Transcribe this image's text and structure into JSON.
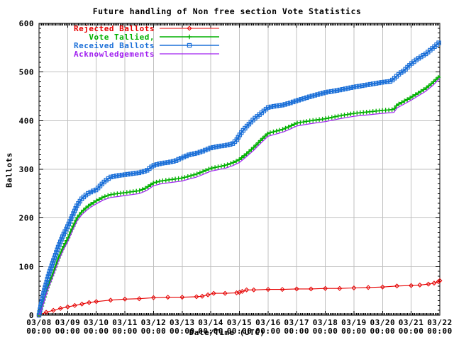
{
  "title": "Future handling of Non free section Vote Statistics",
  "axes": {
    "ylabel": "Ballots",
    "xlabel": "Date/Time (UTC)",
    "y_ticks": [
      0,
      100,
      200,
      300,
      400,
      500,
      600
    ],
    "x_tick_dates": [
      "03/08",
      "03/09",
      "03/10",
      "03/11",
      "03/12",
      "03/13",
      "03/14",
      "03/15",
      "03/16",
      "03/17",
      "03/18",
      "03/19",
      "03/20",
      "03/21",
      "03/22"
    ],
    "x_tick_time": "00:00",
    "ylim": [
      0,
      600
    ],
    "xlim_days": [
      0,
      14
    ],
    "grid": true
  },
  "colors": {
    "background": "#ffffff",
    "grid": "#c0c0c0",
    "axis": "#000000",
    "rejected": "#e60000",
    "tallied": "#00b000",
    "received": "#1c70d8",
    "acknowledgements": "#a020f0"
  },
  "chart_data": {
    "type": "line",
    "title": "Future handling of Non free section Vote Statistics",
    "xlabel": "Date/Time (UTC)",
    "ylabel": "Ballots",
    "ylim": [
      0,
      600
    ],
    "x_unit": "days since 03/08 00:00 UTC, ticks every 1 day from 03/08 to 03/22",
    "legend_position": "top-left",
    "grid": true,
    "series": [
      {
        "name": "Rejected Ballots",
        "color": "#e60000",
        "marker": "diamond",
        "x": [
          0,
          0.25,
          0.5,
          0.75,
          1,
          1.25,
          1.5,
          1.75,
          2,
          2.5,
          3,
          3.5,
          4,
          4.5,
          5,
          5.5,
          5.7,
          5.9,
          6.1,
          6.5,
          6.9,
          7,
          7.1,
          7.25,
          7.5,
          8,
          8.5,
          9,
          9.5,
          10,
          10.5,
          11,
          11.5,
          12,
          12.5,
          13,
          13.3,
          13.6,
          13.8,
          13.95,
          14
        ],
        "y": [
          0,
          6,
          10,
          14,
          17,
          20,
          23,
          26,
          28,
          31,
          33,
          34,
          36,
          37,
          37,
          38,
          39,
          42,
          45,
          45,
          46,
          47,
          49,
          52,
          52,
          53,
          53,
          54,
          54,
          55,
          55,
          56,
          57,
          58,
          60,
          61,
          62,
          64,
          66,
          69,
          71
        ]
      },
      {
        "name": "Vote Tallied,",
        "color": "#00b000",
        "marker": "plus",
        "x": [
          0,
          0.08,
          0.17,
          0.25,
          0.33,
          0.5,
          0.67,
          0.83,
          1,
          1.17,
          1.33,
          1.5,
          1.67,
          1.83,
          2,
          2.25,
          2.5,
          2.75,
          3,
          3.25,
          3.5,
          3.75,
          4,
          4.25,
          4.5,
          4.75,
          5,
          5.25,
          5.5,
          5.75,
          6,
          6.25,
          6.5,
          6.75,
          7,
          7.25,
          7.5,
          7.75,
          8,
          8.25,
          8.5,
          8.75,
          9,
          9.5,
          10,
          10.5,
          11,
          11.5,
          12,
          12.4,
          12.5,
          12.75,
          13,
          13.25,
          13.5,
          13.75,
          14
        ],
        "y": [
          0,
          15,
          32,
          48,
          62,
          88,
          116,
          138,
          157,
          180,
          200,
          213,
          222,
          229,
          235,
          243,
          248,
          250,
          252,
          254,
          256,
          262,
          272,
          276,
          278,
          280,
          282,
          286,
          290,
          296,
          302,
          305,
          308,
          313,
          320,
          332,
          345,
          360,
          374,
          378,
          382,
          388,
          395,
          400,
          404,
          410,
          415,
          418,
          421,
          423,
          432,
          440,
          448,
          457,
          466,
          478,
          492
        ]
      },
      {
        "name": "Received Ballots",
        "color": "#1c70d8",
        "marker": "square",
        "x": [
          0,
          0.08,
          0.17,
          0.25,
          0.33,
          0.5,
          0.67,
          0.83,
          1,
          1.17,
          1.33,
          1.5,
          1.67,
          1.83,
          2,
          2.17,
          2.33,
          2.5,
          2.75,
          3,
          3.25,
          3.5,
          3.75,
          4,
          4.25,
          4.5,
          4.75,
          5,
          5.25,
          5.5,
          5.75,
          6,
          6.25,
          6.5,
          6.75,
          6.9,
          7,
          7.1,
          7.25,
          7.5,
          7.75,
          8,
          8.25,
          8.5,
          8.75,
          9,
          9.5,
          10,
          10.5,
          11,
          11.5,
          12,
          12.3,
          12.5,
          12.6,
          12.75,
          13,
          13.25,
          13.5,
          13.75,
          14
        ],
        "y": [
          0,
          25,
          48,
          65,
          82,
          112,
          140,
          163,
          183,
          205,
          226,
          240,
          249,
          254,
          258,
          268,
          277,
          284,
          287,
          289,
          291,
          293,
          297,
          308,
          312,
          314,
          317,
          324,
          330,
          333,
          338,
          344,
          347,
          349,
          352,
          360,
          370,
          378,
          388,
          403,
          415,
          427,
          430,
          432,
          436,
          441,
          450,
          458,
          463,
          469,
          474,
          479,
          481,
          492,
          497,
          503,
          517,
          528,
          537,
          549,
          562
        ]
      },
      {
        "name": "Acknowledgements",
        "color": "#a020f0",
        "marker": "none",
        "x": [
          0,
          0.08,
          0.17,
          0.25,
          0.33,
          0.5,
          0.67,
          0.83,
          1,
          1.17,
          1.33,
          1.5,
          1.67,
          1.83,
          2,
          2.25,
          2.5,
          2.75,
          3,
          3.25,
          3.5,
          3.75,
          4,
          4.25,
          4.5,
          4.75,
          5,
          5.25,
          5.5,
          5.75,
          6,
          6.25,
          6.5,
          6.75,
          7,
          7.25,
          7.5,
          7.75,
          8,
          8.25,
          8.5,
          8.75,
          9,
          9.5,
          10,
          10.5,
          11,
          11.5,
          12,
          12.4,
          12.5,
          12.75,
          13,
          13.25,
          13.5,
          13.75,
          14
        ],
        "y": [
          0,
          10,
          26,
          42,
          56,
          82,
          110,
          132,
          151,
          174,
          194,
          207,
          216,
          223,
          229,
          237,
          242,
          244,
          246,
          248,
          250,
          256,
          266,
          270,
          272,
          274,
          276,
          280,
          284,
          290,
          296,
          299,
          302,
          307,
          314,
          326,
          339,
          354,
          368,
          372,
          376,
          382,
          389,
          394,
          398,
          404,
          409,
          412,
          415,
          417,
          426,
          434,
          442,
          451,
          460,
          472,
          487
        ]
      }
    ]
  }
}
